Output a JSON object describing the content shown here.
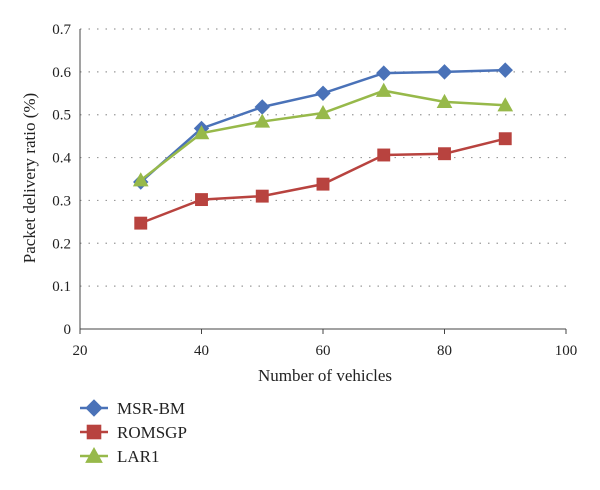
{
  "chart_data": {
    "type": "line",
    "xlabel": "Number of vehicles",
    "ylabel": "Packet delivery ratio (%)",
    "xlim": [
      20,
      100
    ],
    "ylim": [
      0,
      0.7
    ],
    "xticks": [
      "20",
      "40",
      "60",
      "80",
      "100"
    ],
    "yticks": [
      "0",
      "0.1",
      "0.2",
      "0.3",
      "0.4",
      "0.5",
      "0.6",
      "0.7"
    ],
    "grid": "horizontal-dotted",
    "legend_position": "bottom-left",
    "x": [
      30,
      40,
      50,
      60,
      70,
      80,
      90
    ],
    "series": [
      {
        "name": "MSR-BM",
        "color": "#4a72b8",
        "marker": "diamond",
        "values": [
          0.343,
          0.468,
          0.518,
          0.55,
          0.597,
          0.6,
          0.604
        ]
      },
      {
        "name": "ROMSGP",
        "color": "#b8433f",
        "marker": "square",
        "values": [
          0.247,
          0.302,
          0.31,
          0.338,
          0.406,
          0.409,
          0.444
        ]
      },
      {
        "name": "LAR1",
        "color": "#97b94a",
        "marker": "triangle",
        "values": [
          0.347,
          0.457,
          0.484,
          0.504,
          0.556,
          0.53,
          0.522
        ]
      }
    ]
  }
}
